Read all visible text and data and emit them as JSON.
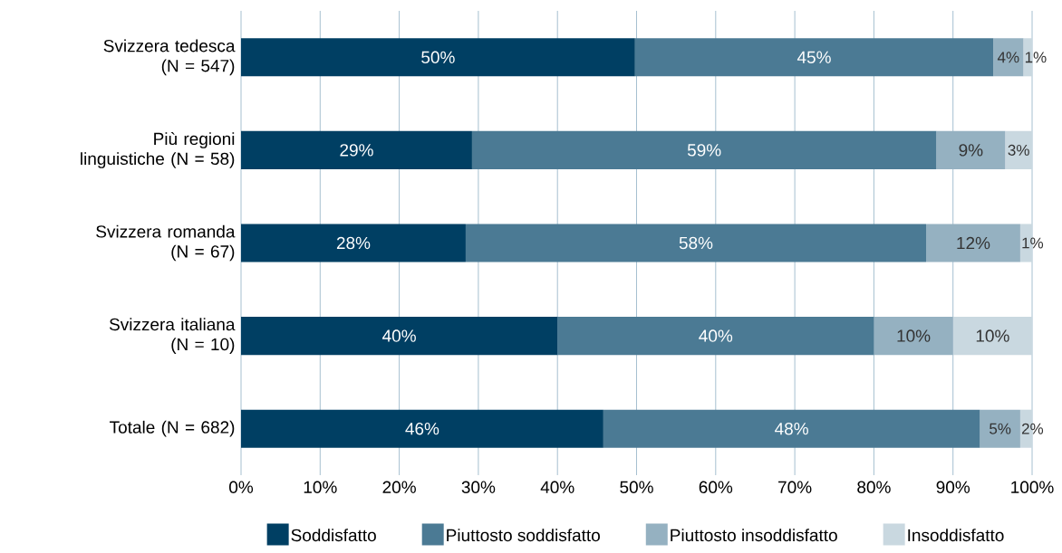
{
  "chart_data": {
    "type": "bar",
    "orientation": "horizontal",
    "stacked": true,
    "categories": [
      "Svizzera tedesca (N = 547)",
      "Più regioni linguistiche (N = 58)",
      "Svizzera romanda (N = 67)",
      "Svizzera italiana (N = 10)",
      "Totale (N = 682)"
    ],
    "series": [
      {
        "name": "Soddisfatto",
        "color": "#003f63",
        "values": [
          49.8,
          29.2,
          28.4,
          40,
          45.8
        ],
        "value_labels": [
          "50%",
          "29%",
          "28%",
          "40%",
          "46%"
        ]
      },
      {
        "name": "Piuttosto soddisfatto",
        "color": "#4b7a94",
        "values": [
          45.3,
          58.7,
          58.2,
          40,
          47.6
        ],
        "value_labels": [
          "45%",
          "59%",
          "58%",
          "40%",
          "48%"
        ]
      },
      {
        "name": "Piuttosto insoddisfatto",
        "color": "#95b1c1",
        "values": [
          3.8,
          8.7,
          11.9,
          10,
          5.1
        ],
        "value_labels": [
          "4%",
          "9%",
          "12%",
          "10%",
          "5%"
        ]
      },
      {
        "name": "Insoddisfatto",
        "color": "#c9d8e0",
        "values": [
          1.1,
          3.4,
          1.5,
          10,
          1.5
        ],
        "value_labels": [
          "1%",
          "3%",
          "1%",
          "10%",
          "2%"
        ]
      }
    ],
    "xlim": [
      0,
      100
    ],
    "xticks": [
      {
        "value": 0,
        "label": "0%"
      },
      {
        "value": 10,
        "label": "10%"
      },
      {
        "value": 20,
        "label": "20%"
      },
      {
        "value": 30,
        "label": "30%"
      },
      {
        "value": 40,
        "label": "40%"
      },
      {
        "value": 50,
        "label": "50%"
      },
      {
        "value": 60,
        "label": "60%"
      },
      {
        "value": 70,
        "label": "70%"
      },
      {
        "value": 80,
        "label": "80%"
      },
      {
        "value": 90,
        "label": "90%"
      },
      {
        "value": 100,
        "label": "100%"
      }
    ],
    "grid": "x",
    "legend": "bottom"
  }
}
